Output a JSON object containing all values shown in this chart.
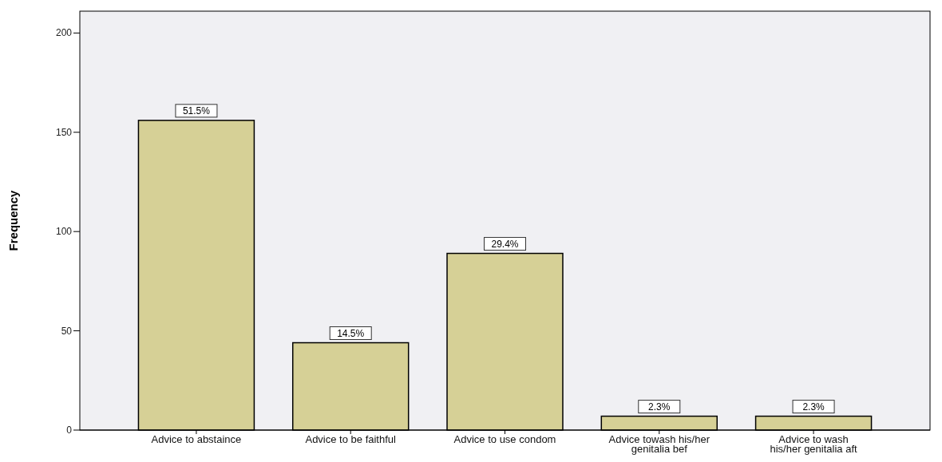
{
  "chart_data": {
    "type": "bar",
    "ylabel": "Frequency",
    "categories": [
      "Advice to abstaince",
      "Advice to be faithful",
      "Advice to use condom",
      "Advice towash his/her genitalia bef",
      "Advice to wash his/her genitalia aft"
    ],
    "values": [
      156,
      44,
      89,
      7,
      7
    ],
    "color": "#d6d096",
    "annotations": [
      {
        "text": "51.5%",
        "x": "Advice to abstaince",
        "y": 156
      },
      {
        "text": "14.5%",
        "x": "Advice to be faithful",
        "y": 44
      },
      {
        "text": "29.4%",
        "x": "Advice to use condom",
        "y": 89
      },
      {
        "text": "2.3%",
        "x": "Advice towash his/her genitalia bef",
        "y": 7
      },
      {
        "text": "2.3%",
        "x": "Advice to wash his/her genitalia aft",
        "y": 7
      }
    ],
    "ylim": [
      0,
      211
    ],
    "yticks": [
      0,
      50,
      100,
      150,
      200
    ],
    "grid": false
  }
}
